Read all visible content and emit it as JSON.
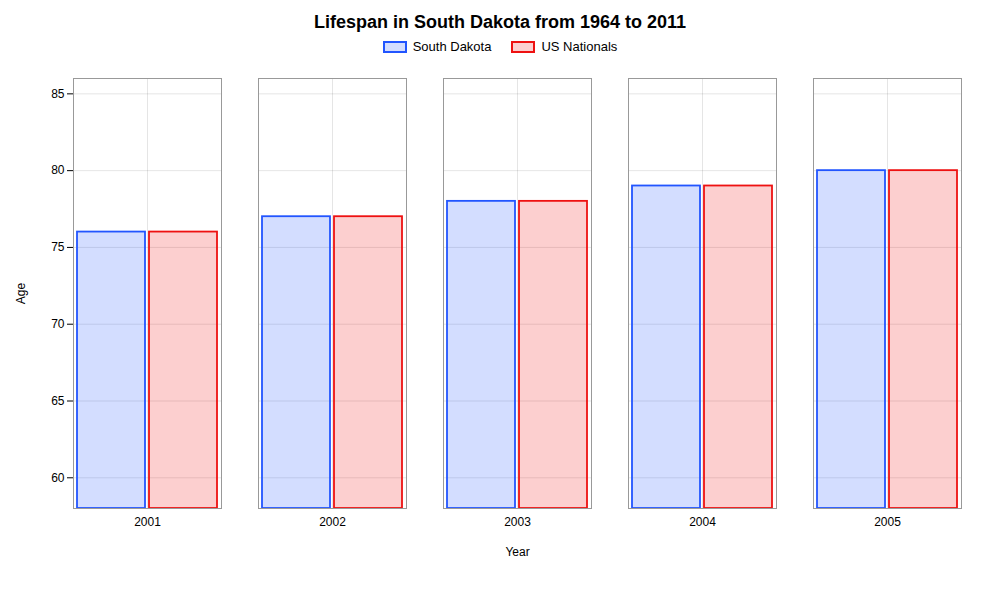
{
  "chart_data": {
    "type": "bar",
    "title": "Lifespan in South Dakota from 1964 to 2011",
    "xlabel": "Year",
    "ylabel": "Age",
    "categories": [
      "2001",
      "2002",
      "2003",
      "2004",
      "2005"
    ],
    "series": [
      {
        "name": "South Dakota",
        "color": "#2255ff",
        "values": [
          76,
          77,
          78,
          79,
          80
        ]
      },
      {
        "name": "US Nationals",
        "color": "#ee1111",
        "values": [
          76,
          77,
          78,
          79,
          80
        ]
      }
    ],
    "ylim": [
      58,
      86
    ],
    "yticks": [
      60,
      65,
      70,
      75,
      80,
      85
    ],
    "grid": true
  }
}
